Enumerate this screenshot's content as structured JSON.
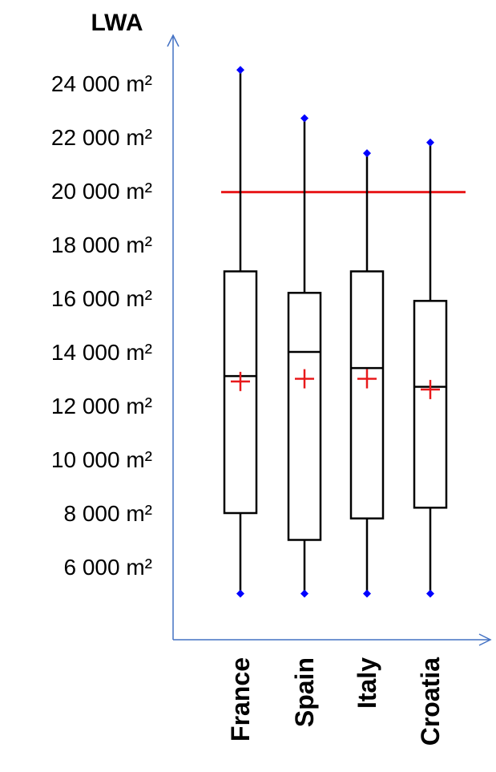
{
  "chart_data": {
    "type": "box",
    "ylabel": "LWA",
    "xlabel": "",
    "title": "",
    "y_unit": "m²",
    "y_ticks": [
      "6 000 m²",
      "8 000 m²",
      "10 000 m²",
      "12 000 m²",
      "14 000 m²",
      "16 000 m²",
      "18 000 m²",
      "20 000 m²",
      "22 000 m²",
      "24 000 m²"
    ],
    "y_tick_values": [
      6000,
      8000,
      10000,
      12000,
      14000,
      16000,
      18000,
      20000,
      22000,
      24000
    ],
    "ylim": [
      3500,
      25500
    ],
    "categories": [
      "France",
      "Spain",
      "Italy",
      "Croatia"
    ],
    "boxes": [
      {
        "category": "France",
        "min": 5000,
        "q1": 8000,
        "median": 13100,
        "q3": 17000,
        "max": 24500,
        "mean": 12900
      },
      {
        "category": "Spain",
        "min": 5000,
        "q1": 7000,
        "median": 14000,
        "q3": 16200,
        "max": 22700,
        "mean": 13000
      },
      {
        "category": "Italy",
        "min": 5000,
        "q1": 7800,
        "median": 13400,
        "q3": 17000,
        "max": 21400,
        "mean": 13000
      },
      {
        "category": "Croatia",
        "min": 5000,
        "q1": 8200,
        "median": 12700,
        "q3": 15900,
        "max": 21800,
        "mean": 12600
      }
    ],
    "reference_line": {
      "value": 19950,
      "color": "#e8191b"
    },
    "colors": {
      "axis": "#4472c4",
      "box": "#000000",
      "whisker_cap": "#0000ff",
      "mean_marker": "#e8191b",
      "reference_line": "#e8191b"
    },
    "grid": false,
    "legend": "none"
  }
}
